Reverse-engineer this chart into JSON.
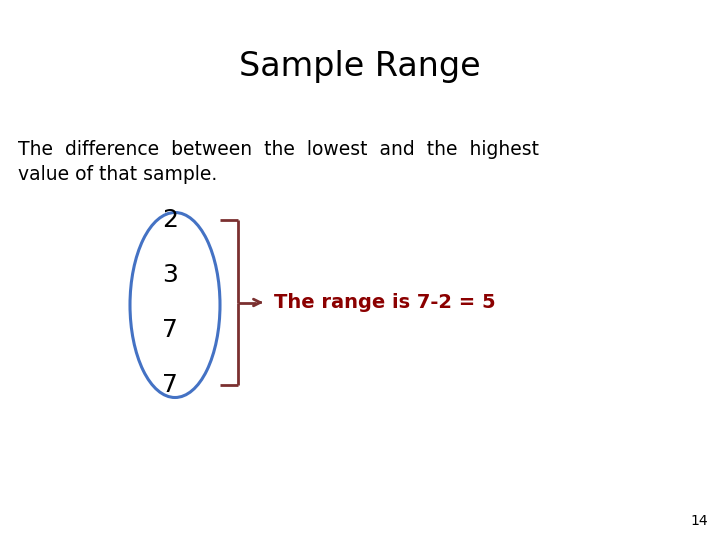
{
  "title": "Sample Range",
  "title_fontsize": 24,
  "body_text_line1": "The  difference  between  the  lowest  and  the  highest",
  "body_text_line2": "value of that sample.",
  "body_fontsize": 13.5,
  "numbers": [
    "2",
    "3",
    "7",
    "7"
  ],
  "numbers_fontsize": 18,
  "range_label": "The range is 7-2 = 5",
  "range_fontsize": 14,
  "ellipse_color": "#4472C4",
  "bracket_color": "#7B3030",
  "range_text_color": "#8B0000",
  "page_number": "14",
  "bg_color": "#FFFFFF"
}
